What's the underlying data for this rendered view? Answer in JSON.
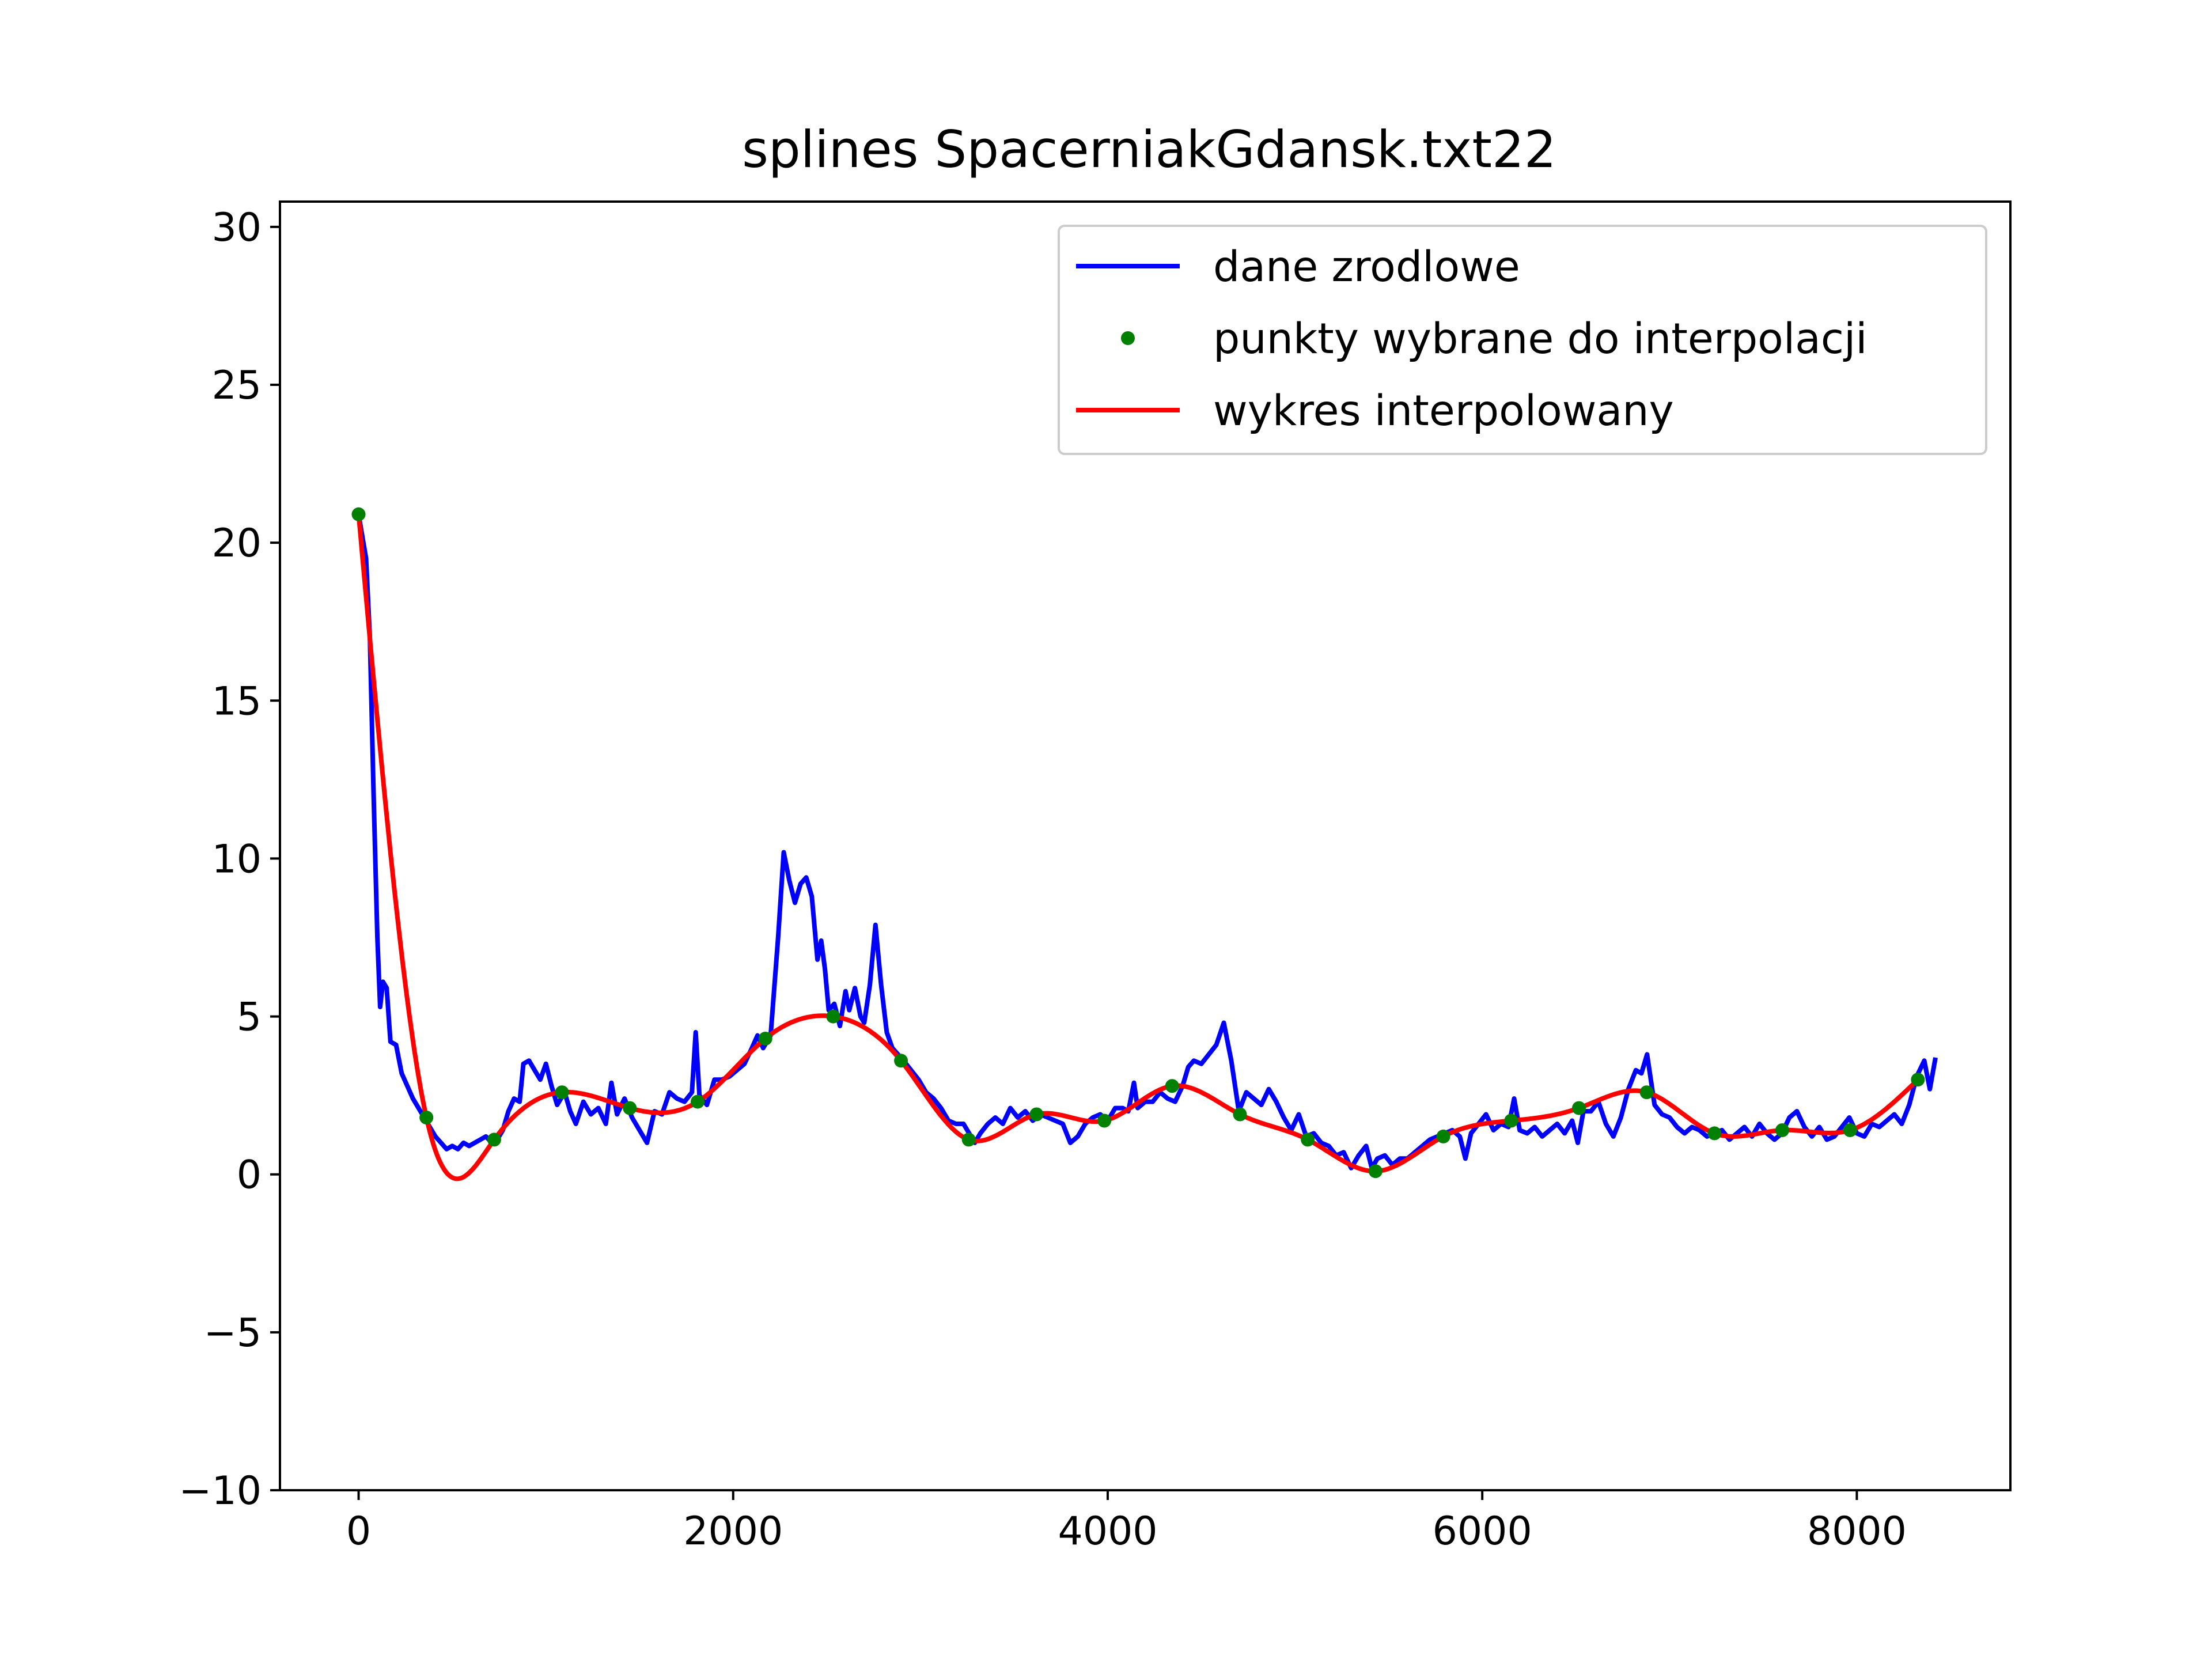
{
  "chart_data": {
    "type": "line",
    "title": "splines SpacerniakGdansk.txt22",
    "xlabel": "",
    "ylabel": "",
    "xlim": [
      -420,
      8820
    ],
    "ylim": [
      -10,
      30.8
    ],
    "xticks": [
      0,
      2000,
      4000,
      6000,
      8000
    ],
    "xtick_labels": [
      "0",
      "2000",
      "4000",
      "6000",
      "8000"
    ],
    "yticks": [
      -10,
      -5,
      0,
      5,
      10,
      15,
      20,
      25,
      30
    ],
    "ytick_labels": [
      "−10",
      "−5",
      "0",
      "5",
      "10",
      "15",
      "20",
      "25",
      "30"
    ],
    "grid": false,
    "legend_position": "upper-right",
    "series": [
      {
        "name": "dane zrodlowe",
        "kind": "line",
        "color": "#0000ff",
        "points": [
          [
            0,
            20.9
          ],
          [
            40,
            19.5
          ],
          [
            60,
            17
          ],
          [
            80,
            12
          ],
          [
            100,
            7.5
          ],
          [
            115,
            5.3
          ],
          [
            130,
            6.1
          ],
          [
            150,
            5.9
          ],
          [
            170,
            4.2
          ],
          [
            200,
            4.1
          ],
          [
            230,
            3.2
          ],
          [
            260,
            2.8
          ],
          [
            290,
            2.4
          ],
          [
            320,
            2.1
          ],
          [
            350,
            1.8
          ],
          [
            380,
            1.5
          ],
          [
            410,
            1.2
          ],
          [
            440,
            1.0
          ],
          [
            470,
            0.8
          ],
          [
            500,
            0.9
          ],
          [
            530,
            0.8
          ],
          [
            560,
            1.0
          ],
          [
            590,
            0.9
          ],
          [
            620,
            1.0
          ],
          [
            650,
            1.1
          ],
          [
            680,
            1.2
          ],
          [
            710,
            1.0
          ],
          [
            740,
            1.1
          ],
          [
            770,
            1.4
          ],
          [
            800,
            2.0
          ],
          [
            830,
            2.4
          ],
          [
            860,
            2.3
          ],
          [
            880,
            3.5
          ],
          [
            910,
            3.6
          ],
          [
            940,
            3.3
          ],
          [
            970,
            3.0
          ],
          [
            1000,
            3.5
          ],
          [
            1030,
            2.8
          ],
          [
            1060,
            2.2
          ],
          [
            1100,
            2.6
          ],
          [
            1130,
            2.0
          ],
          [
            1160,
            1.6
          ],
          [
            1200,
            2.3
          ],
          [
            1240,
            1.9
          ],
          [
            1280,
            2.1
          ],
          [
            1320,
            1.6
          ],
          [
            1350,
            2.9
          ],
          [
            1380,
            1.9
          ],
          [
            1420,
            2.4
          ],
          [
            1460,
            1.8
          ],
          [
            1500,
            1.4
          ],
          [
            1540,
            1.0
          ],
          [
            1580,
            2.0
          ],
          [
            1620,
            1.9
          ],
          [
            1660,
            2.6
          ],
          [
            1700,
            2.4
          ],
          [
            1740,
            2.3
          ],
          [
            1780,
            2.6
          ],
          [
            1800,
            4.5
          ],
          [
            1820,
            2.5
          ],
          [
            1860,
            2.2
          ],
          [
            1900,
            3.0
          ],
          [
            1940,
            3.0
          ],
          [
            1980,
            3.1
          ],
          [
            2020,
            3.3
          ],
          [
            2060,
            3.5
          ],
          [
            2100,
            4.0
          ],
          [
            2130,
            4.4
          ],
          [
            2160,
            4.0
          ],
          [
            2200,
            4.4
          ],
          [
            2240,
            7.5
          ],
          [
            2270,
            10.2
          ],
          [
            2300,
            9.3
          ],
          [
            2330,
            8.6
          ],
          [
            2360,
            9.2
          ],
          [
            2390,
            9.4
          ],
          [
            2420,
            8.8
          ],
          [
            2450,
            6.8
          ],
          [
            2470,
            7.4
          ],
          [
            2490,
            6.5
          ],
          [
            2510,
            5.2
          ],
          [
            2540,
            5.4
          ],
          [
            2570,
            4.7
          ],
          [
            2600,
            5.8
          ],
          [
            2620,
            5.2
          ],
          [
            2650,
            5.9
          ],
          [
            2680,
            5.0
          ],
          [
            2700,
            4.8
          ],
          [
            2730,
            6.0
          ],
          [
            2760,
            7.9
          ],
          [
            2790,
            6.0
          ],
          [
            2820,
            4.5
          ],
          [
            2850,
            4.0
          ],
          [
            2880,
            3.8
          ],
          [
            2910,
            3.6
          ],
          [
            2950,
            3.3
          ],
          [
            2990,
            3.0
          ],
          [
            3030,
            2.6
          ],
          [
            3070,
            2.4
          ],
          [
            3110,
            2.1
          ],
          [
            3150,
            1.7
          ],
          [
            3190,
            1.6
          ],
          [
            3230,
            1.6
          ],
          [
            3260,
            1.3
          ],
          [
            3290,
            1.0
          ],
          [
            3320,
            1.3
          ],
          [
            3360,
            1.6
          ],
          [
            3400,
            1.8
          ],
          [
            3440,
            1.6
          ],
          [
            3480,
            2.1
          ],
          [
            3520,
            1.8
          ],
          [
            3560,
            2.0
          ],
          [
            3600,
            1.7
          ],
          [
            3640,
            1.9
          ],
          [
            3680,
            1.8
          ],
          [
            3720,
            1.7
          ],
          [
            3760,
            1.6
          ],
          [
            3800,
            1.0
          ],
          [
            3840,
            1.2
          ],
          [
            3880,
            1.6
          ],
          [
            3920,
            1.8
          ],
          [
            3960,
            1.9
          ],
          [
            4000,
            1.7
          ],
          [
            4040,
            2.1
          ],
          [
            4080,
            2.1
          ],
          [
            4110,
            2.0
          ],
          [
            4140,
            2.9
          ],
          [
            4160,
            2.1
          ],
          [
            4200,
            2.3
          ],
          [
            4240,
            2.3
          ],
          [
            4280,
            2.6
          ],
          [
            4320,
            2.4
          ],
          [
            4360,
            2.3
          ],
          [
            4400,
            2.8
          ],
          [
            4430,
            3.4
          ],
          [
            4460,
            3.6
          ],
          [
            4500,
            3.5
          ],
          [
            4540,
            3.8
          ],
          [
            4580,
            4.1
          ],
          [
            4620,
            4.8
          ],
          [
            4660,
            3.6
          ],
          [
            4700,
            2.0
          ],
          [
            4740,
            2.6
          ],
          [
            4780,
            2.4
          ],
          [
            4820,
            2.2
          ],
          [
            4860,
            2.7
          ],
          [
            4900,
            2.3
          ],
          [
            4940,
            1.8
          ],
          [
            4980,
            1.4
          ],
          [
            5020,
            1.9
          ],
          [
            5060,
            1.2
          ],
          [
            5100,
            1.3
          ],
          [
            5140,
            1.0
          ],
          [
            5180,
            0.9
          ],
          [
            5220,
            0.6
          ],
          [
            5260,
            0.7
          ],
          [
            5300,
            0.2
          ],
          [
            5340,
            0.6
          ],
          [
            5380,
            0.9
          ],
          [
            5410,
            0.2
          ],
          [
            5440,
            0.5
          ],
          [
            5480,
            0.6
          ],
          [
            5520,
            0.3
          ],
          [
            5560,
            0.5
          ],
          [
            5600,
            0.5
          ],
          [
            5640,
            0.7
          ],
          [
            5680,
            0.9
          ],
          [
            5720,
            1.1
          ],
          [
            5760,
            1.2
          ],
          [
            5800,
            1.3
          ],
          [
            5840,
            1.4
          ],
          [
            5880,
            1.2
          ],
          [
            5910,
            0.5
          ],
          [
            5940,
            1.3
          ],
          [
            5980,
            1.6
          ],
          [
            6020,
            1.9
          ],
          [
            6060,
            1.4
          ],
          [
            6100,
            1.6
          ],
          [
            6140,
            1.5
          ],
          [
            6170,
            2.4
          ],
          [
            6200,
            1.4
          ],
          [
            6240,
            1.3
          ],
          [
            6280,
            1.5
          ],
          [
            6320,
            1.2
          ],
          [
            6360,
            1.4
          ],
          [
            6400,
            1.6
          ],
          [
            6440,
            1.3
          ],
          [
            6480,
            1.7
          ],
          [
            6510,
            1.0
          ],
          [
            6540,
            2.0
          ],
          [
            6580,
            2.0
          ],
          [
            6620,
            2.3
          ],
          [
            6660,
            1.6
          ],
          [
            6700,
            1.2
          ],
          [
            6740,
            1.8
          ],
          [
            6780,
            2.7
          ],
          [
            6820,
            3.3
          ],
          [
            6850,
            3.2
          ],
          [
            6880,
            3.8
          ],
          [
            6920,
            2.2
          ],
          [
            6960,
            1.9
          ],
          [
            7000,
            1.8
          ],
          [
            7040,
            1.5
          ],
          [
            7080,
            1.3
          ],
          [
            7120,
            1.5
          ],
          [
            7160,
            1.4
          ],
          [
            7200,
            1.2
          ],
          [
            7240,
            1.3
          ],
          [
            7280,
            1.4
          ],
          [
            7320,
            1.1
          ],
          [
            7360,
            1.3
          ],
          [
            7400,
            1.5
          ],
          [
            7440,
            1.2
          ],
          [
            7480,
            1.6
          ],
          [
            7520,
            1.3
          ],
          [
            7560,
            1.1
          ],
          [
            7600,
            1.3
          ],
          [
            7640,
            1.8
          ],
          [
            7680,
            2.0
          ],
          [
            7720,
            1.5
          ],
          [
            7760,
            1.2
          ],
          [
            7800,
            1.5
          ],
          [
            7840,
            1.1
          ],
          [
            7880,
            1.2
          ],
          [
            7920,
            1.5
          ],
          [
            7960,
            1.8
          ],
          [
            8000,
            1.3
          ],
          [
            8040,
            1.2
          ],
          [
            8080,
            1.6
          ],
          [
            8120,
            1.5
          ],
          [
            8160,
            1.7
          ],
          [
            8200,
            1.9
          ],
          [
            8240,
            1.6
          ],
          [
            8280,
            2.2
          ],
          [
            8320,
            3.1
          ],
          [
            8360,
            3.6
          ],
          [
            8390,
            2.7
          ],
          [
            8420,
            3.7
          ]
        ]
      },
      {
        "name": "punkty wybrane do interpolacji",
        "kind": "scatter",
        "color": "#008000",
        "points": [
          [
            0,
            20.9
          ],
          [
            362,
            1.8
          ],
          [
            724,
            1.1
          ],
          [
            1086,
            2.6
          ],
          [
            1448,
            2.1
          ],
          [
            1810,
            2.3
          ],
          [
            2172,
            4.3
          ],
          [
            2534,
            5.0
          ],
          [
            2896,
            3.6
          ],
          [
            3258,
            1.1
          ],
          [
            3620,
            1.9
          ],
          [
            3982,
            1.7
          ],
          [
            4344,
            2.8
          ],
          [
            4706,
            1.9
          ],
          [
            5068,
            1.1
          ],
          [
            5430,
            0.1
          ],
          [
            5792,
            1.2
          ],
          [
            6154,
            1.7
          ],
          [
            6516,
            2.1
          ],
          [
            6878,
            2.6
          ],
          [
            7240,
            1.3
          ],
          [
            7602,
            1.4
          ],
          [
            7964,
            1.4
          ],
          [
            8326,
            3.0
          ]
        ]
      },
      {
        "name": "wykres interpolowany",
        "kind": "spline",
        "color": "#ff0000"
      }
    ]
  }
}
